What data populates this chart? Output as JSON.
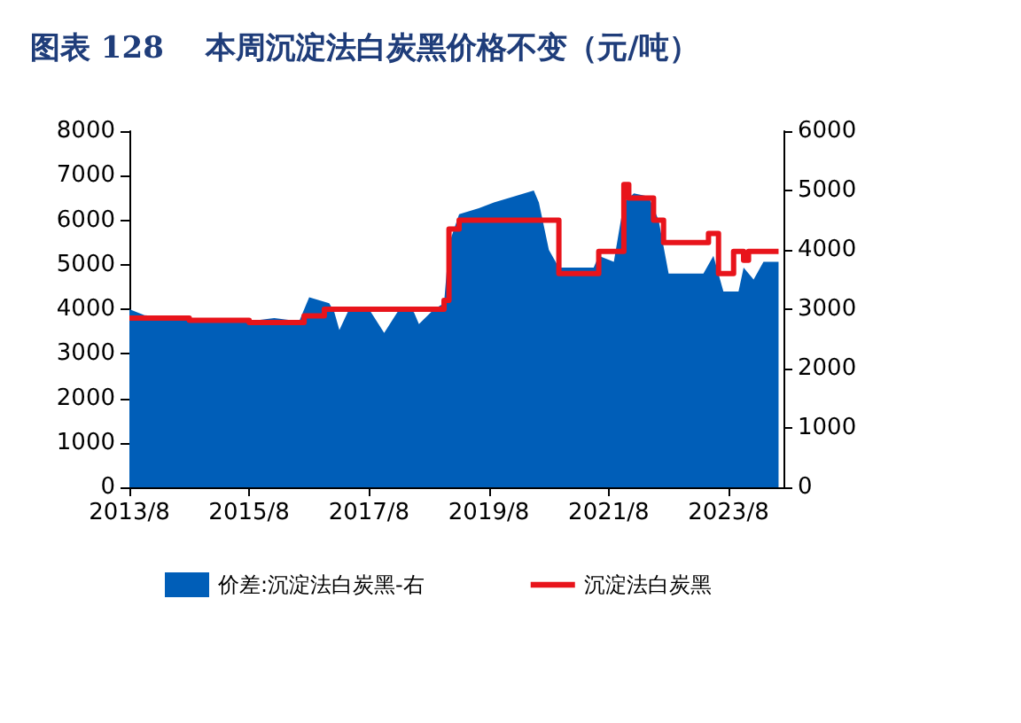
{
  "chart_data": {
    "type": "step",
    "title": "图表 128    本周沉淀法白炭黑价格不变（元/吨）",
    "xlim": [
      "2013-08",
      "2024-07"
    ],
    "xticks": [
      {
        "value": "2013-08",
        "label": "2013/8"
      },
      {
        "value": "2015-08",
        "label": "2015/8"
      },
      {
        "value": "2017-08",
        "label": "2017/8"
      },
      {
        "value": "2019-08",
        "label": "2019/8"
      },
      {
        "value": "2021-08",
        "label": "2021/8"
      },
      {
        "value": "2023-08",
        "label": "2023/8"
      }
    ],
    "ylim": [
      0,
      8000
    ],
    "yticks": [
      0,
      1000,
      2000,
      3000,
      4000,
      5000,
      6000,
      7000,
      8000
    ],
    "y2lim": [
      0,
      6000
    ],
    "y2ticks": [
      0,
      1000,
      2000,
      3000,
      4000,
      5000,
      6000
    ],
    "grid": false,
    "legend": "bottom",
    "marker": "none",
    "line_style": "solid",
    "series": [
      {
        "name": "价差:沉淀法白炭黑-右",
        "type": "area",
        "axis": "y2",
        "color": "#005eb8",
        "x": [
          "2013-08",
          "2013-11",
          "2014-08",
          "2015-08",
          "2016-01",
          "2016-06",
          "2016-08",
          "2016-12",
          "2017-01",
          "2017-02",
          "2017-04",
          "2017-08",
          "2017-11",
          "2018-02",
          "2018-05",
          "2018-06",
          "2018-09",
          "2018-11",
          "2018-12",
          "2019-02",
          "2019-06",
          "2019-09",
          "2020-01",
          "2020-05",
          "2020-06",
          "2020-08",
          "2020-10",
          "2021-01",
          "2021-05",
          "2021-06",
          "2021-09",
          "2021-11",
          "2022-01",
          "2022-04",
          "2022-06",
          "2022-08",
          "2023-03",
          "2023-05",
          "2023-07",
          "2023-10",
          "2023-11",
          "2024-01",
          "2024-03",
          "2024-06"
        ],
        "values": [
          3000,
          2900,
          2850,
          2800,
          2850,
          2800,
          3200,
          3100,
          2950,
          2650,
          3000,
          3000,
          2600,
          3000,
          2950,
          2750,
          3000,
          3100,
          4100,
          4600,
          4700,
          4800,
          4900,
          5000,
          4800,
          4000,
          3700,
          3700,
          3700,
          3900,
          3800,
          4800,
          4950,
          4900,
          4500,
          3600,
          3600,
          3900,
          3300,
          3300,
          3700,
          3500,
          3800,
          3800
        ]
      },
      {
        "name": "沉淀法白炭黑",
        "axis": "y",
        "color": "#e8141b",
        "x": [
          "2013-08",
          "2014-08",
          "2015-08",
          "2016-06",
          "2016-07",
          "2016-11",
          "2018-09",
          "2018-11",
          "2018-12",
          "2019-02",
          "2020-08",
          "2020-10",
          "2021-06",
          "2021-09",
          "2021-11",
          "2021-12",
          "2022-05",
          "2022-07",
          "2023-04",
          "2023-05",
          "2023-06",
          "2023-09",
          "2023-11",
          "2023-12",
          "2024-06"
        ],
        "values": [
          3800,
          3750,
          3700,
          3700,
          3850,
          4000,
          4000,
          4200,
          5800,
          6000,
          6000,
          4800,
          5300,
          5300,
          6800,
          6500,
          6000,
          5500,
          5700,
          5700,
          4800,
          5300,
          5100,
          5300,
          5300
        ]
      }
    ]
  }
}
